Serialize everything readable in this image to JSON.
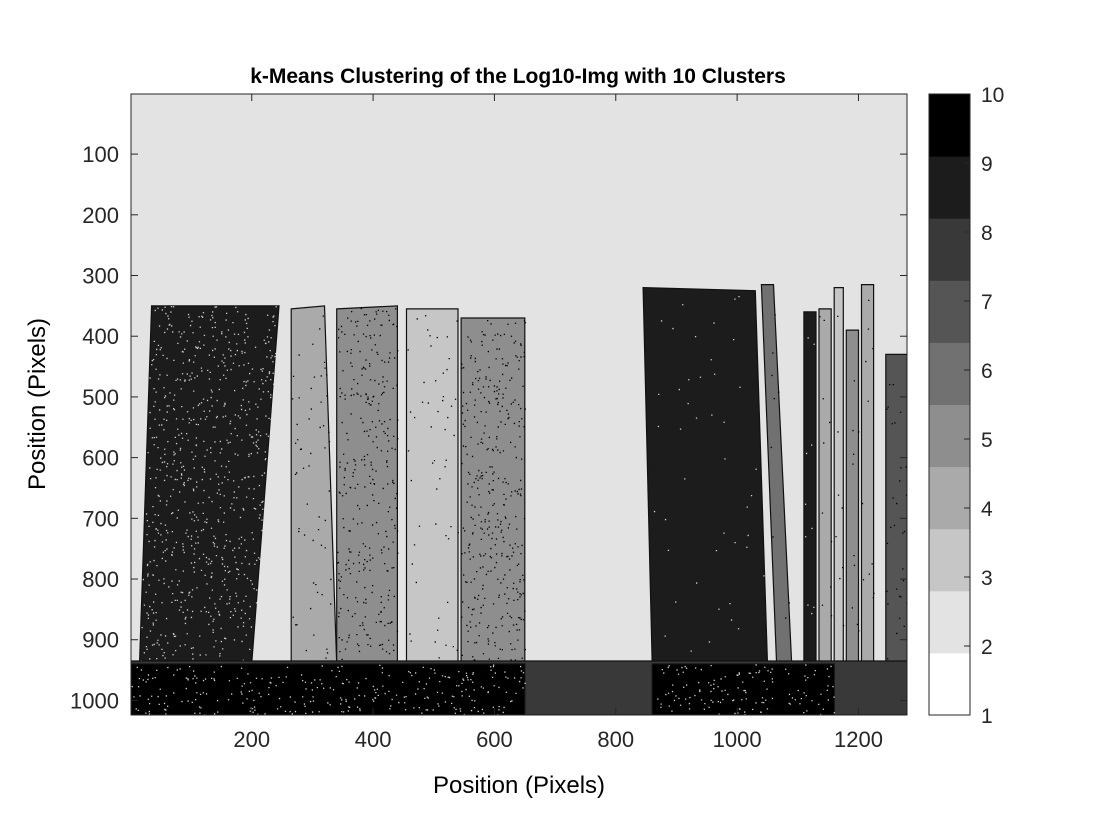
{
  "chart_data": {
    "type": "heatmap",
    "title": "k-Means Clustering of the Log10-Img with 10 Clusters",
    "xlabel": "Position (Pixels)",
    "ylabel": "Position (Pixels)",
    "xlim": [
      1,
      1280
    ],
    "ylim": [
      1,
      1024
    ],
    "y_reversed": true,
    "x_ticks": [
      200,
      400,
      600,
      800,
      1000,
      1200
    ],
    "y_ticks": [
      100,
      200,
      300,
      400,
      500,
      600,
      700,
      800,
      900,
      1000
    ],
    "background_cluster": 2,
    "regions": [
      {
        "label": "dark-book-left",
        "cluster": 9,
        "noise": 0.35,
        "poly": [
          [
            35,
            350
          ],
          [
            245,
            350
          ],
          [
            200,
            940
          ],
          [
            15,
            940
          ]
        ]
      },
      {
        "label": "gray-book-1",
        "cluster": 4,
        "noise": 0.08,
        "poly": [
          [
            265,
            355
          ],
          [
            320,
            350
          ],
          [
            340,
            940
          ],
          [
            265,
            940
          ]
        ]
      },
      {
        "label": "gray-book-2",
        "cluster": 5,
        "noise": 0.3,
        "poly": [
          [
            340,
            355
          ],
          [
            440,
            350
          ],
          [
            440,
            940
          ],
          [
            340,
            940
          ]
        ]
      },
      {
        "label": "light-book",
        "cluster": 3,
        "noise": 0.06,
        "poly": [
          [
            455,
            355
          ],
          [
            540,
            355
          ],
          [
            540,
            940
          ],
          [
            455,
            940
          ]
        ]
      },
      {
        "label": "mid-book",
        "cluster": 5,
        "noise": 0.35,
        "poly": [
          [
            545,
            370
          ],
          [
            650,
            370
          ],
          [
            650,
            940
          ],
          [
            545,
            940
          ]
        ]
      },
      {
        "label": "black-binder",
        "cluster": 9,
        "noise": 0.02,
        "poly": [
          [
            845,
            320
          ],
          [
            1030,
            325
          ],
          [
            1050,
            940
          ],
          [
            860,
            940
          ]
        ]
      },
      {
        "label": "thin-spine-1",
        "cluster": 6,
        "noise": 0.05,
        "poly": [
          [
            1040,
            315
          ],
          [
            1060,
            315
          ],
          [
            1090,
            940
          ],
          [
            1065,
            940
          ]
        ]
      },
      {
        "label": "thin-spine-2",
        "cluster": 9,
        "noise": 0.05,
        "poly": [
          [
            1110,
            360
          ],
          [
            1130,
            360
          ],
          [
            1130,
            940
          ],
          [
            1110,
            940
          ]
        ]
      },
      {
        "label": "thin-spine-3",
        "cluster": 4,
        "noise": 0.05,
        "poly": [
          [
            1135,
            355
          ],
          [
            1155,
            355
          ],
          [
            1155,
            940
          ],
          [
            1135,
            940
          ]
        ]
      },
      {
        "label": "thin-spine-4",
        "cluster": 3,
        "noise": 0.05,
        "poly": [
          [
            1160,
            320
          ],
          [
            1175,
            320
          ],
          [
            1175,
            940
          ],
          [
            1160,
            940
          ]
        ]
      },
      {
        "label": "thin-spine-5",
        "cluster": 5,
        "noise": 0.05,
        "poly": [
          [
            1180,
            390
          ],
          [
            1200,
            390
          ],
          [
            1200,
            940
          ],
          [
            1180,
            940
          ]
        ]
      },
      {
        "label": "thin-spine-6",
        "cluster": 4,
        "noise": 0.05,
        "poly": [
          [
            1205,
            315
          ],
          [
            1225,
            315
          ],
          [
            1225,
            940
          ],
          [
            1205,
            940
          ]
        ]
      },
      {
        "label": "edge-strip",
        "cluster": 7,
        "noise": 0.1,
        "poly": [
          [
            1245,
            430
          ],
          [
            1280,
            430
          ],
          [
            1280,
            940
          ],
          [
            1245,
            940
          ]
        ]
      },
      {
        "label": "floor-band",
        "cluster": 8,
        "noise": 0.0,
        "poly": [
          [
            1,
            935
          ],
          [
            1280,
            935
          ],
          [
            1280,
            1024
          ],
          [
            1,
            1024
          ]
        ]
      },
      {
        "label": "floor-dark-left",
        "cluster": 10,
        "noise": 0.3,
        "poly": [
          [
            1,
            940
          ],
          [
            650,
            940
          ],
          [
            650,
            1024
          ],
          [
            1,
            1024
          ]
        ]
      },
      {
        "label": "floor-dark-right",
        "cluster": 10,
        "noise": 0.3,
        "poly": [
          [
            860,
            940
          ],
          [
            1160,
            940
          ],
          [
            1160,
            1024
          ],
          [
            860,
            1024
          ]
        ]
      }
    ],
    "colorbar": {
      "min": 1,
      "max": 10,
      "ticks": [
        "1",
        "2",
        "3",
        "4",
        "5",
        "6",
        "7",
        "8",
        "9",
        "10"
      ],
      "colors": [
        "#ffffff",
        "#e3e3e3",
        "#c6c6c6",
        "#aaaaaa",
        "#8e8e8e",
        "#717171",
        "#555555",
        "#393939",
        "#1c1c1c",
        "#000000"
      ]
    }
  }
}
